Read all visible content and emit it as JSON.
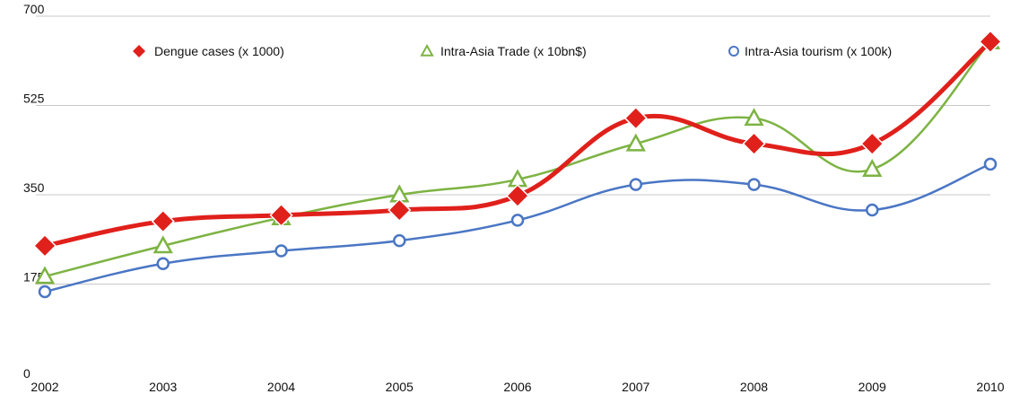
{
  "chart_data": {
    "type": "line",
    "x": [
      "2002",
      "2003",
      "2004",
      "2005",
      "2006",
      "2007",
      "2008",
      "2009",
      "2010"
    ],
    "yticks": [
      "0",
      "175",
      "350",
      "525",
      "700"
    ],
    "ylim": [
      0,
      700
    ],
    "grid": true,
    "legend_position": "top",
    "series": [
      {
        "name": "Dengue cases (x 1000)",
        "color": "#e0201b",
        "marker": "diamond",
        "values": [
          250,
          298,
          310,
          320,
          348,
          500,
          450,
          450,
          650
        ]
      },
      {
        "name": "Intra-Asia Trade (x 10bn$)",
        "color": "#7db343",
        "marker": "triangle",
        "values": [
          190,
          250,
          305,
          350,
          380,
          450,
          500,
          400,
          650
        ]
      },
      {
        "name": "Intra-Asia tourism (x 100k)",
        "color": "#4a76c4",
        "marker": "circle",
        "values": [
          160,
          215,
          240,
          260,
          300,
          370,
          370,
          320,
          410
        ]
      }
    ]
  }
}
